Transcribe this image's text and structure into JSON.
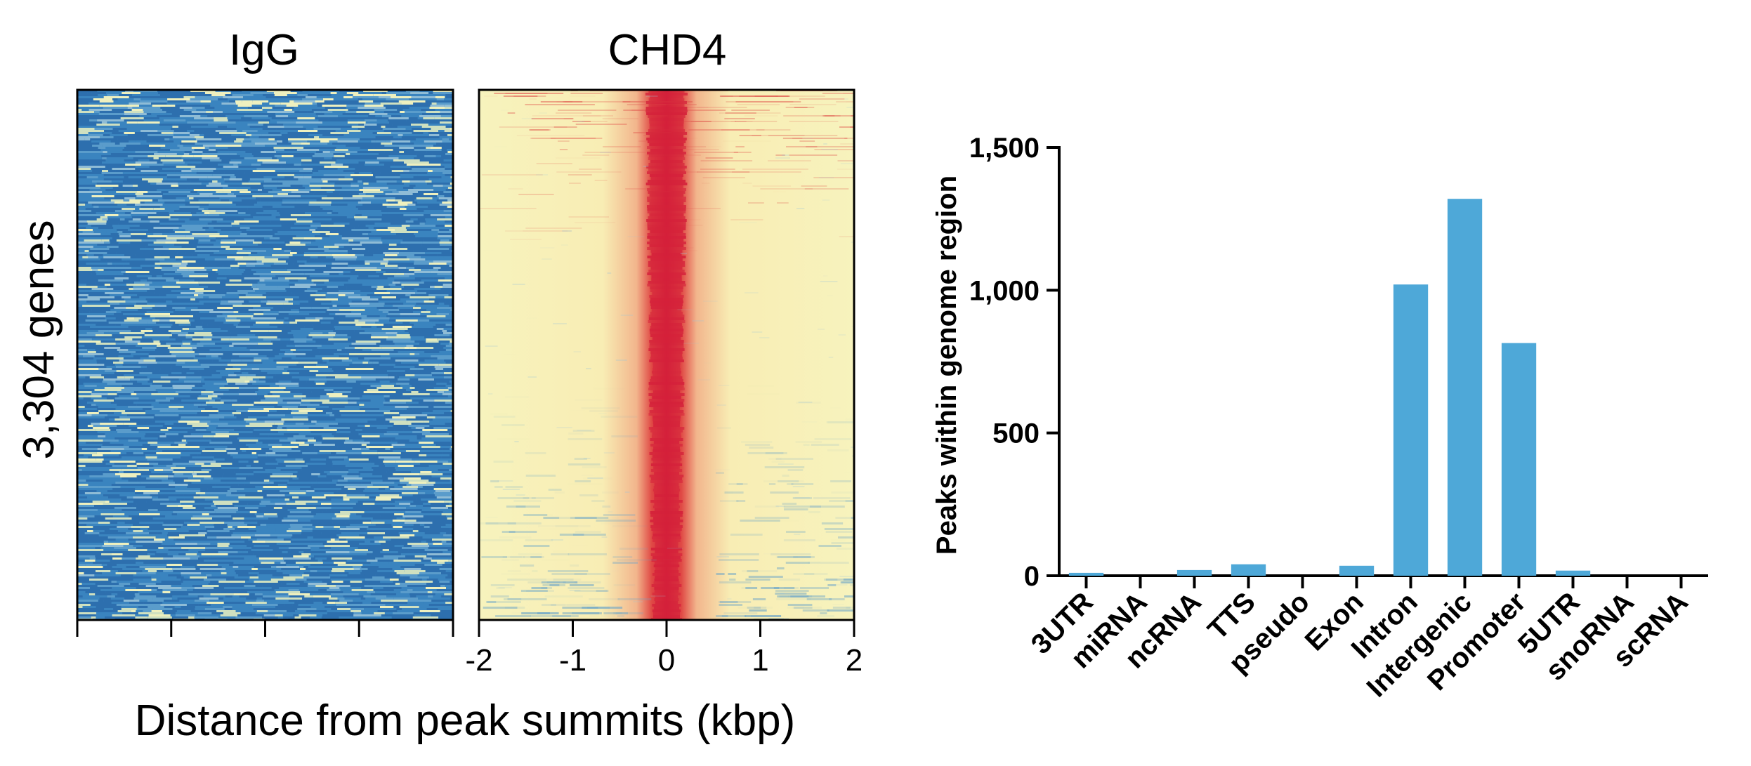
{
  "chart_data": [
    {
      "type": "heatmap",
      "panels": [
        {
          "title": "IgG",
          "signal": "low"
        },
        {
          "title": "CHD4",
          "signal": "centered-peak"
        }
      ],
      "ylabel": "3,304 genes",
      "xlabel": "Distance from peak summits (kbp)",
      "xticks": [
        "-2",
        "-1",
        "0",
        "1",
        "2"
      ],
      "xlim": [
        -2,
        2
      ],
      "rows": 3304,
      "colormap": {
        "low": "#2f74b3",
        "mid": "#f7f3bd",
        "high": "#d8283a"
      }
    },
    {
      "type": "bar",
      "categories": [
        "3UTR",
        "miRNA",
        "ncRNA",
        "TTS",
        "pseudo",
        "Exon",
        "Intron",
        "Intergenic",
        "Promoter",
        "5UTR",
        "snoRNA",
        "scRNA"
      ],
      "values": [
        10,
        0,
        20,
        40,
        0,
        35,
        1020,
        1320,
        815,
        18,
        0,
        0
      ],
      "ylabel": "Peaks within genome region",
      "yticks": [
        "0",
        "500",
        "1,000",
        "1,500"
      ],
      "ytick_values": [
        0,
        500,
        1000,
        1500
      ],
      "ylim": [
        0,
        1500
      ],
      "bar_color": "#4ea8d8"
    }
  ]
}
